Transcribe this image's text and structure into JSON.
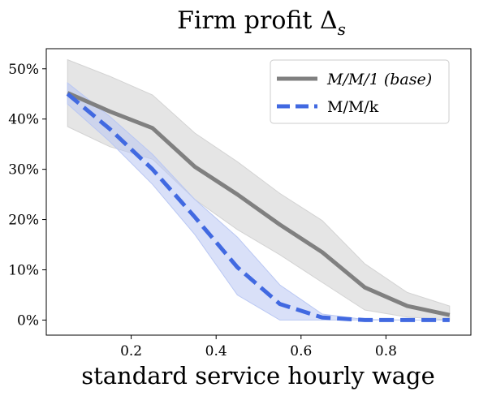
{
  "chart_data": {
    "type": "line",
    "title": "Firm profit Δ",
    "title_subscript": "s",
    "xlabel": "standard service hourly wage",
    "ylabel": "",
    "xlim": [
      0.0,
      1.0
    ],
    "ylim": [
      -3,
      54
    ],
    "x_ticks": [
      0.2,
      0.4,
      0.6,
      0.8
    ],
    "x_tick_labels": [
      "0.2",
      "0.4",
      "0.6",
      "0.8"
    ],
    "y_ticks": [
      0,
      10,
      20,
      30,
      40,
      50
    ],
    "y_tick_labels": [
      "0%",
      "10%",
      "20%",
      "30%",
      "40%",
      "50%"
    ],
    "grid": false,
    "legend_position": "top-right",
    "x": [
      0.05,
      0.15,
      0.25,
      0.35,
      0.45,
      0.55,
      0.65,
      0.75,
      0.85,
      0.95
    ],
    "series": [
      {
        "name": "M/M/1 (base)",
        "color": "#808080",
        "band_color": "#d3d3d3",
        "line_style": "solid",
        "values": [
          45.2,
          41.5,
          38.2,
          30.5,
          25.0,
          19.0,
          13.5,
          6.5,
          2.8,
          1.0
        ],
        "lower": [
          38.5,
          34.5,
          32.0,
          24.0,
          18.0,
          13.0,
          7.5,
          2.0,
          0.6,
          0.0
        ],
        "upper": [
          51.8,
          48.5,
          44.8,
          37.2,
          31.5,
          25.2,
          19.8,
          11.2,
          5.5,
          2.8
        ]
      },
      {
        "name": "M/M/k",
        "color": "#4169e1",
        "band_color": "#b9c7f3",
        "line_style": "dashed",
        "values": [
          45.0,
          38.0,
          30.0,
          20.5,
          10.5,
          3.2,
          0.5,
          0.0,
          0.0,
          0.0
        ],
        "lower": [
          43.0,
          35.5,
          27.0,
          17.0,
          5.0,
          0.0,
          0.0,
          0.0,
          0.0,
          0.0
        ],
        "upper": [
          47.2,
          40.5,
          33.0,
          24.0,
          16.5,
          7.0,
          1.2,
          0.1,
          0.0,
          0.0
        ]
      }
    ]
  }
}
